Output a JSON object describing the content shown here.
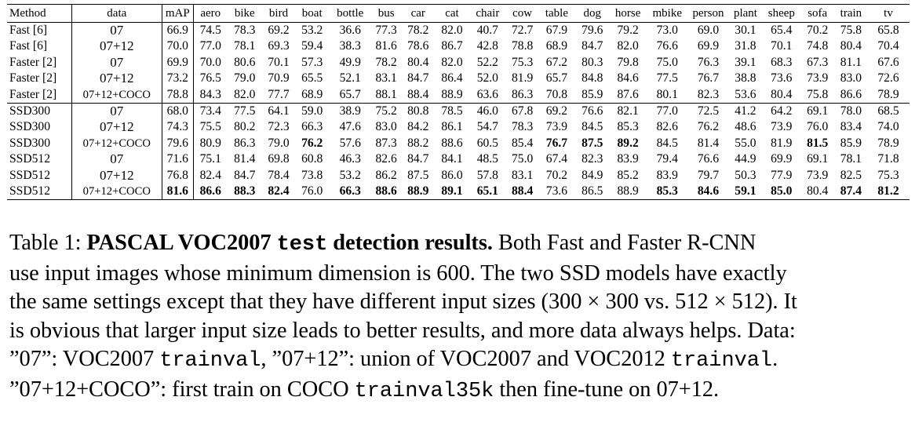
{
  "table": {
    "headers": [
      "Method",
      "data",
      "mAP",
      "aero",
      "bike",
      "bird",
      "boat",
      "bottle",
      "bus",
      "car",
      "cat",
      "chair",
      "cow",
      "table",
      "dog",
      "horse",
      "mbike",
      "person",
      "plant",
      "sheep",
      "sofa",
      "train",
      "tv"
    ],
    "rows": [
      {
        "method": "Fast [6]",
        "data": "07",
        "values": [
          "66.9",
          "74.5",
          "78.3",
          "69.2",
          "53.2",
          "36.6",
          "77.3",
          "78.2",
          "82.0",
          "40.7",
          "72.7",
          "67.9",
          "79.6",
          "79.2",
          "73.0",
          "69.0",
          "30.1",
          "65.4",
          "70.2",
          "75.8",
          "65.8"
        ],
        "bold": []
      },
      {
        "method": "Fast [6]",
        "data": "07+12",
        "values": [
          "70.0",
          "77.0",
          "78.1",
          "69.3",
          "59.4",
          "38.3",
          "81.6",
          "78.6",
          "86.7",
          "42.8",
          "78.8",
          "68.9",
          "84.7",
          "82.0",
          "76.6",
          "69.9",
          "31.8",
          "70.1",
          "74.8",
          "80.4",
          "70.4"
        ],
        "bold": []
      },
      {
        "method": "Faster [2]",
        "data": "07",
        "values": [
          "69.9",
          "70.0",
          "80.6",
          "70.1",
          "57.3",
          "49.9",
          "78.2",
          "80.4",
          "82.0",
          "52.2",
          "75.3",
          "67.2",
          "80.3",
          "79.8",
          "75.0",
          "76.3",
          "39.1",
          "68.3",
          "67.3",
          "81.1",
          "67.6"
        ],
        "bold": []
      },
      {
        "method": "Faster [2]",
        "data": "07+12",
        "values": [
          "73.2",
          "76.5",
          "79.0",
          "70.9",
          "65.5",
          "52.1",
          "83.1",
          "84.7",
          "86.4",
          "52.0",
          "81.9",
          "65.7",
          "84.8",
          "84.6",
          "77.5",
          "76.7",
          "38.8",
          "73.6",
          "73.9",
          "83.0",
          "72.6"
        ],
        "bold": []
      },
      {
        "method": "Faster [2]",
        "data": "07+12+COCO",
        "values": [
          "78.8",
          "84.3",
          "82.0",
          "77.7",
          "68.9",
          "65.7",
          "88.1",
          "88.4",
          "88.9",
          "63.6",
          "86.3",
          "70.8",
          "85.9",
          "87.6",
          "80.1",
          "82.3",
          "53.6",
          "80.4",
          "75.8",
          "86.6",
          "78.9"
        ],
        "bold": []
      },
      {
        "method": "SSD300",
        "data": "07",
        "values": [
          "68.0",
          "73.4",
          "77.5",
          "64.1",
          "59.0",
          "38.9",
          "75.2",
          "80.8",
          "78.5",
          "46.0",
          "67.8",
          "69.2",
          "76.6",
          "82.1",
          "77.0",
          "72.5",
          "41.2",
          "64.2",
          "69.1",
          "78.0",
          "68.5"
        ],
        "bold": []
      },
      {
        "method": "SSD300",
        "data": "07+12",
        "values": [
          "74.3",
          "75.5",
          "80.2",
          "72.3",
          "66.3",
          "47.6",
          "83.0",
          "84.2",
          "86.1",
          "54.7",
          "78.3",
          "73.9",
          "84.5",
          "85.3",
          "82.6",
          "76.2",
          "48.6",
          "73.9",
          "76.0",
          "83.4",
          "74.0"
        ],
        "bold": []
      },
      {
        "method": "SSD300",
        "data": "07+12+COCO",
        "values": [
          "79.6",
          "80.9",
          "86.3",
          "79.0",
          "76.2",
          "57.6",
          "87.3",
          "88.2",
          "88.6",
          "60.5",
          "85.4",
          "76.7",
          "87.5",
          "89.2",
          "84.5",
          "81.4",
          "55.0",
          "81.9",
          "81.5",
          "85.9",
          "78.9"
        ],
        "bold": [
          4,
          11,
          12,
          13,
          18
        ]
      },
      {
        "method": "SSD512",
        "data": "07",
        "values": [
          "71.6",
          "75.1",
          "81.4",
          "69.8",
          "60.8",
          "46.3",
          "82.6",
          "84.7",
          "84.1",
          "48.5",
          "75.0",
          "67.4",
          "82.3",
          "83.9",
          "79.4",
          "76.6",
          "44.9",
          "69.9",
          "69.1",
          "78.1",
          "71.8"
        ],
        "bold": []
      },
      {
        "method": "SSD512",
        "data": "07+12",
        "values": [
          "76.8",
          "82.4",
          "84.7",
          "78.4",
          "73.8",
          "53.2",
          "86.2",
          "87.5",
          "86.0",
          "57.8",
          "83.1",
          "70.2",
          "84.9",
          "85.2",
          "83.9",
          "79.7",
          "50.3",
          "77.9",
          "73.9",
          "82.5",
          "75.3"
        ],
        "bold": []
      },
      {
        "method": "SSD512",
        "data": "07+12+COCO",
        "values": [
          "81.6",
          "86.6",
          "88.3",
          "82.4",
          "76.0",
          "66.3",
          "88.6",
          "88.9",
          "89.1",
          "65.1",
          "88.4",
          "73.6",
          "86.5",
          "88.9",
          "85.3",
          "84.6",
          "59.1",
          "85.0",
          "80.4",
          "87.4",
          "81.2"
        ],
        "bold": [
          0,
          1,
          2,
          3,
          5,
          6,
          7,
          8,
          9,
          10,
          14,
          15,
          16,
          17,
          19,
          20
        ]
      }
    ]
  },
  "caption": {
    "prefix": "Table 1: ",
    "bold_title_a": "PASCAL VOC2007 ",
    "bold_title_mono": "test",
    "bold_title_b": " detection results.",
    "line1_rest": " Both Fast and Faster R-CNN",
    "line2": "use input images whose minimum dimension is 600. The two SSD models have exactly",
    "line3": "the same settings except that they have different input sizes (300 × 300 vs. 512 × 512). It",
    "line4": "is obvious that larger input size leads to better results, and more data always helps. Data:",
    "line5_a": "”07”: VOC2007 ",
    "line5_mono_a": "trainval",
    "line5_b": ", ”07+12”: union of VOC2007 and VOC2012 ",
    "line5_mono_b": "trainval",
    "line5_c": ".",
    "line6_a": "”07+12+COCO”: first train on COCO ",
    "line6_mono": "trainval35k",
    "line6_b": " then fine-tune on 07+12."
  }
}
